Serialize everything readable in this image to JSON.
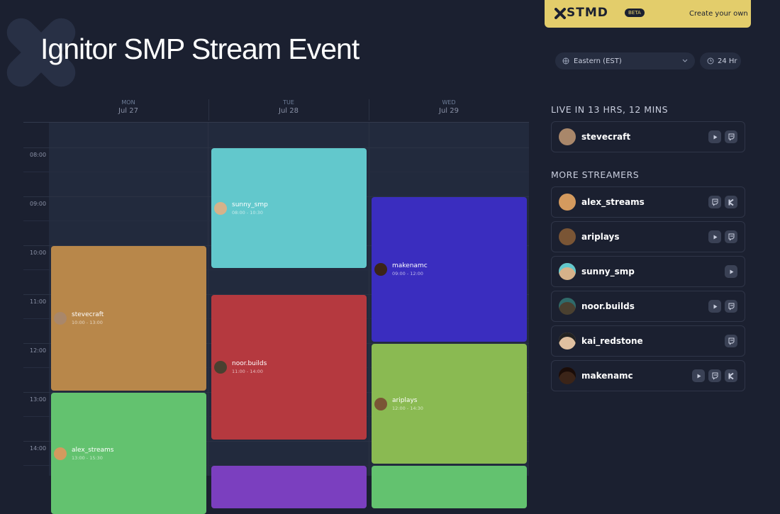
{
  "header": {
    "title": "Ignitor SMP Stream Event"
  },
  "banner": {
    "logo": "STMD",
    "badge": "BETA",
    "link": "Create your own"
  },
  "controls": {
    "timezone": "Eastern (EST)",
    "format": "24 Hr"
  },
  "calendar": {
    "days": [
      {
        "weekday": "MON",
        "date": "Jul 27"
      },
      {
        "weekday": "TUE",
        "date": "Jul 28"
      },
      {
        "weekday": "WED",
        "date": "Jul 29"
      }
    ],
    "times": [
      "08:00",
      "09:00",
      "10:00",
      "11:00",
      "12:00",
      "13:00",
      "14:00"
    ],
    "events": [
      {
        "name": "stevecraft",
        "time": "10:00 - 13:00"
      },
      {
        "name": "alex_streams",
        "time": "13:00 - 15:30"
      },
      {
        "name": "sunny_smp",
        "time": "08:00 - 10:30"
      },
      {
        "name": "noor.builds",
        "time": "11:00 - 14:00"
      },
      {
        "name": "makenamc",
        "time": "09:00 - 12:00"
      },
      {
        "name": "ariplays",
        "time": "12:00 - 14:30"
      }
    ]
  },
  "sidebar": {
    "live_heading": "LIVE IN 13 HRS, 12 MINS",
    "live": [
      "stevecraft"
    ],
    "more_heading": "MORE STREAMERS",
    "more": [
      "alex_streams",
      "ariplays",
      "sunny_smp",
      "noor.builds",
      "kai_redstone",
      "makenamc"
    ]
  }
}
